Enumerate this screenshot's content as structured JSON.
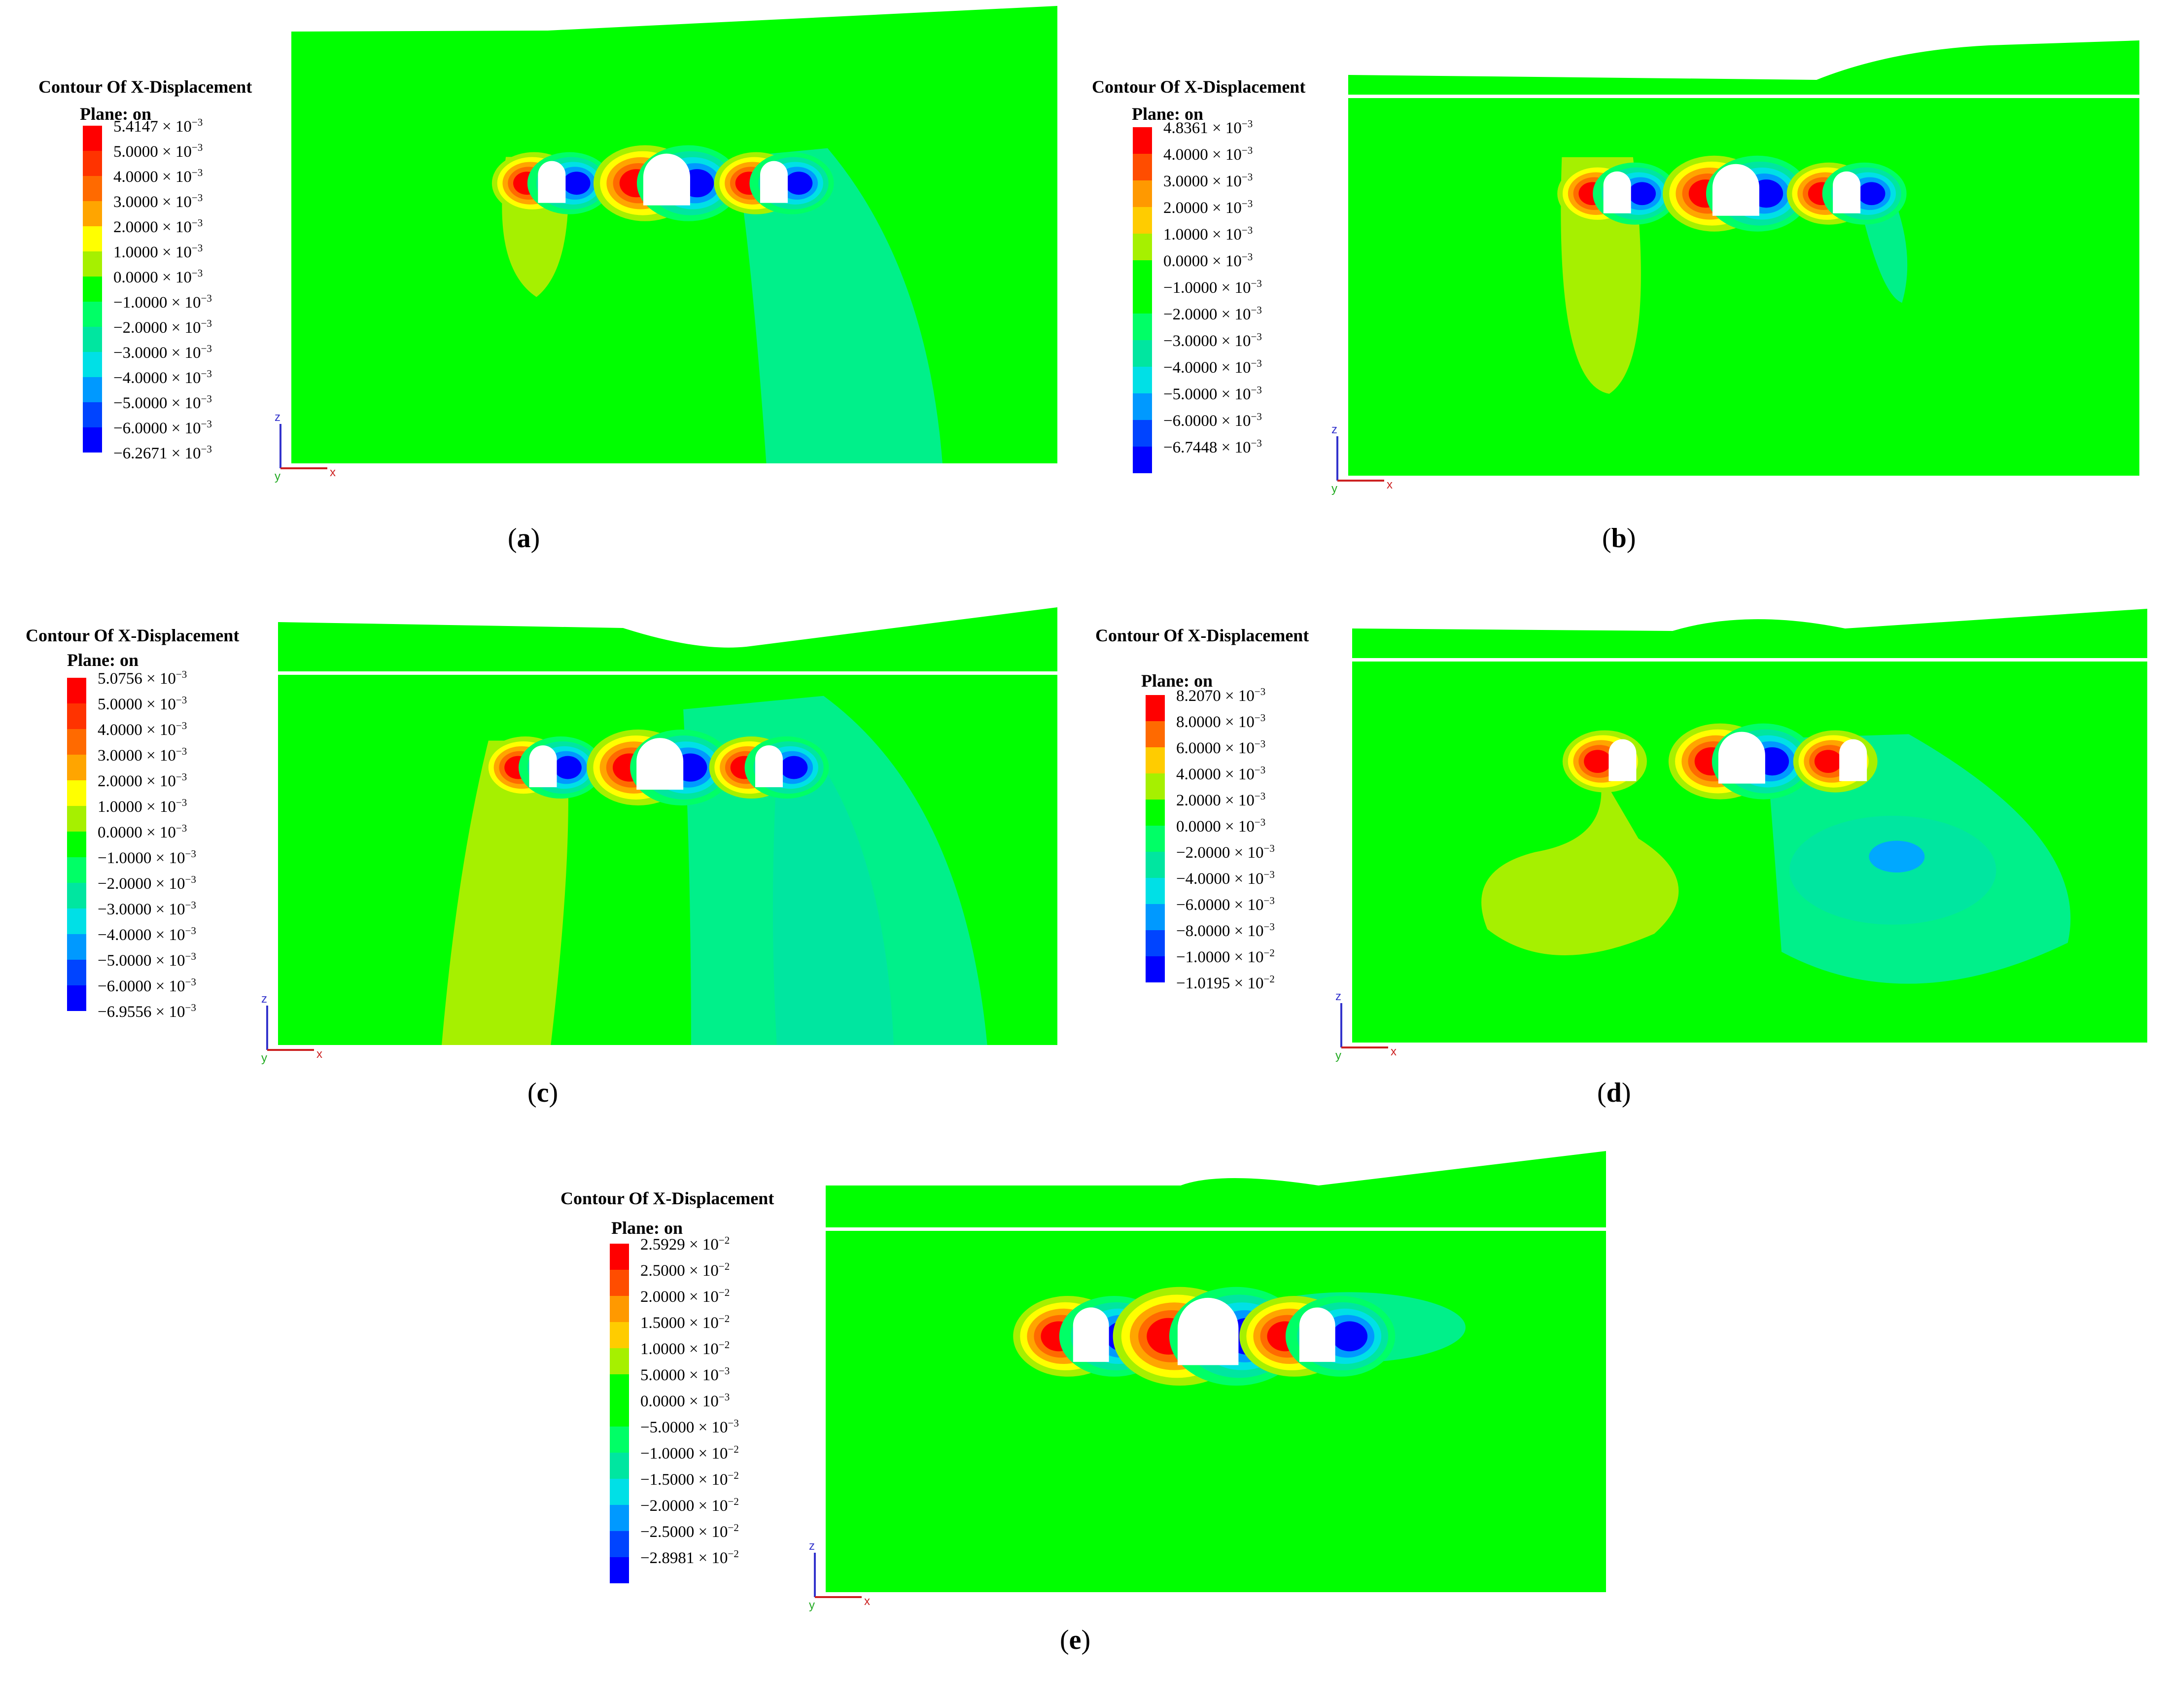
{
  "panels": [
    {
      "id": "a",
      "title": "Contour Of X-Displacement",
      "plane": "Plane: on",
      "caption_letter": "a",
      "legend_colors": [
        "#ff0000",
        "#ff3300",
        "#ff6a00",
        "#ffa500",
        "#ffff00",
        "#a6f000",
        "#00ff00",
        "#00ff66",
        "#00e6a0",
        "#00e0e6",
        "#0099ff",
        "#0044ff",
        "#0000ff"
      ],
      "legend_labels": [
        {
          "m": "5.4147",
          "e": "−3"
        },
        {
          "m": "5.0000",
          "e": "−3"
        },
        {
          "m": "4.0000",
          "e": "−3"
        },
        {
          "m": "3.0000",
          "e": "−3"
        },
        {
          "m": "2.0000",
          "e": "−3"
        },
        {
          "m": "1.0000",
          "e": "−3"
        },
        {
          "m": "0.0000",
          "e": "−3"
        },
        {
          "m": "−1.0000",
          "e": "−3"
        },
        {
          "m": "−2.0000",
          "e": "−3"
        },
        {
          "m": "−3.0000",
          "e": "−3"
        },
        {
          "m": "−4.0000",
          "e": "−3"
        },
        {
          "m": "−5.0000",
          "e": "−3"
        },
        {
          "m": "−6.0000",
          "e": "−3"
        },
        {
          "m": "−6.2671",
          "e": "−3"
        }
      ]
    },
    {
      "id": "b",
      "title": "Contour Of X-Displacement",
      "plane": "Plane: on",
      "caption_letter": "b",
      "legend_colors": [
        "#ff0000",
        "#ff4d00",
        "#ff9900",
        "#ffcc00",
        "#a6f000",
        "#00ff00",
        "#00ff00",
        "#00ff66",
        "#00e6a0",
        "#00e0e6",
        "#0099ff",
        "#0044ff",
        "#0000ff"
      ],
      "legend_labels": [
        {
          "m": "4.8361",
          "e": "−3"
        },
        {
          "m": "4.0000",
          "e": "−3"
        },
        {
          "m": "3.0000",
          "e": "−3"
        },
        {
          "m": "2.0000",
          "e": "−3"
        },
        {
          "m": "1.0000",
          "e": "−3"
        },
        {
          "m": "0.0000",
          "e": "−3"
        },
        {
          "m": "−1.0000",
          "e": "−3"
        },
        {
          "m": "−2.0000",
          "e": "−3"
        },
        {
          "m": "−3.0000",
          "e": "−3"
        },
        {
          "m": "−4.0000",
          "e": "−3"
        },
        {
          "m": "−5.0000",
          "e": "−3"
        },
        {
          "m": "−6.0000",
          "e": "−3"
        },
        {
          "m": "−6.7448",
          "e": "−3"
        }
      ]
    },
    {
      "id": "c",
      "title": "Contour Of X-Displacement",
      "plane": "Plane: on",
      "caption_letter": "c",
      "legend_colors": [
        "#ff0000",
        "#ff3300",
        "#ff6a00",
        "#ffa500",
        "#ffff00",
        "#a6f000",
        "#00ff00",
        "#00ff66",
        "#00e6a0",
        "#00e0e6",
        "#0099ff",
        "#0044ff",
        "#0000ff"
      ],
      "legend_labels": [
        {
          "m": "5.0756",
          "e": "−3"
        },
        {
          "m": "5.0000",
          "e": "−3"
        },
        {
          "m": "4.0000",
          "e": "−3"
        },
        {
          "m": "3.0000",
          "e": "−3"
        },
        {
          "m": "2.0000",
          "e": "−3"
        },
        {
          "m": "1.0000",
          "e": "−3"
        },
        {
          "m": "0.0000",
          "e": "−3"
        },
        {
          "m": "−1.0000",
          "e": "−3"
        },
        {
          "m": "−2.0000",
          "e": "−3"
        },
        {
          "m": "−3.0000",
          "e": "−3"
        },
        {
          "m": "−4.0000",
          "e": "−3"
        },
        {
          "m": "−5.0000",
          "e": "−3"
        },
        {
          "m": "−6.0000",
          "e": "−3"
        },
        {
          "m": "−6.9556",
          "e": "−3"
        }
      ]
    },
    {
      "id": "d",
      "title": "Contour Of X-Displacement",
      "plane": "Plane: on",
      "caption_letter": "d",
      "legend_colors": [
        "#ff0000",
        "#ff6a00",
        "#ffcc00",
        "#a6f000",
        "#00ff00",
        "#00ff66",
        "#00e6a0",
        "#00e0e6",
        "#0099ff",
        "#0044ff",
        "#0000ff"
      ],
      "legend_labels": [
        {
          "m": "8.2070",
          "e": "−3"
        },
        {
          "m": "8.0000",
          "e": "−3"
        },
        {
          "m": "6.0000",
          "e": "−3"
        },
        {
          "m": "4.0000",
          "e": "−3"
        },
        {
          "m": "2.0000",
          "e": "−3"
        },
        {
          "m": "0.0000",
          "e": "−3"
        },
        {
          "m": "−2.0000",
          "e": "−3"
        },
        {
          "m": "−4.0000",
          "e": "−3"
        },
        {
          "m": "−6.0000",
          "e": "−3"
        },
        {
          "m": "−8.0000",
          "e": "−3"
        },
        {
          "m": "−1.0000",
          "e": "−2"
        },
        {
          "m": "−1.0195",
          "e": "−2"
        }
      ]
    },
    {
      "id": "e",
      "title": "Contour Of X-Displacement",
      "plane": "Plane: on",
      "caption_letter": "e",
      "legend_colors": [
        "#ff0000",
        "#ff4d00",
        "#ff9900",
        "#ffcc00",
        "#a6f000",
        "#00ff00",
        "#00ff00",
        "#00ff66",
        "#00e6a0",
        "#00e0e6",
        "#0099ff",
        "#0044ff",
        "#0000ff"
      ],
      "legend_labels": [
        {
          "m": "2.5929",
          "e": "−2"
        },
        {
          "m": "2.5000",
          "e": "−2"
        },
        {
          "m": "2.0000",
          "e": "−2"
        },
        {
          "m": "1.5000",
          "e": "−2"
        },
        {
          "m": "1.0000",
          "e": "−2"
        },
        {
          "m": "5.0000",
          "e": "−3"
        },
        {
          "m": "0.0000",
          "e": "−3"
        },
        {
          "m": "−5.0000",
          "e": "−3"
        },
        {
          "m": "−1.0000",
          "e": "−2"
        },
        {
          "m": "−1.5000",
          "e": "−2"
        },
        {
          "m": "−2.0000",
          "e": "−2"
        },
        {
          "m": "−2.5000",
          "e": "−2"
        },
        {
          "m": "−2.8981",
          "e": "−2"
        }
      ]
    }
  ],
  "axis_labels": {
    "z": "z",
    "x": "x",
    "y": "y"
  },
  "colors": {
    "base_green": "#00ff00",
    "light_green": "#a6f000",
    "teal": "#00e6a0",
    "cyan": "#00e0e6",
    "red": "#ff0000",
    "blue": "#0000ff"
  }
}
